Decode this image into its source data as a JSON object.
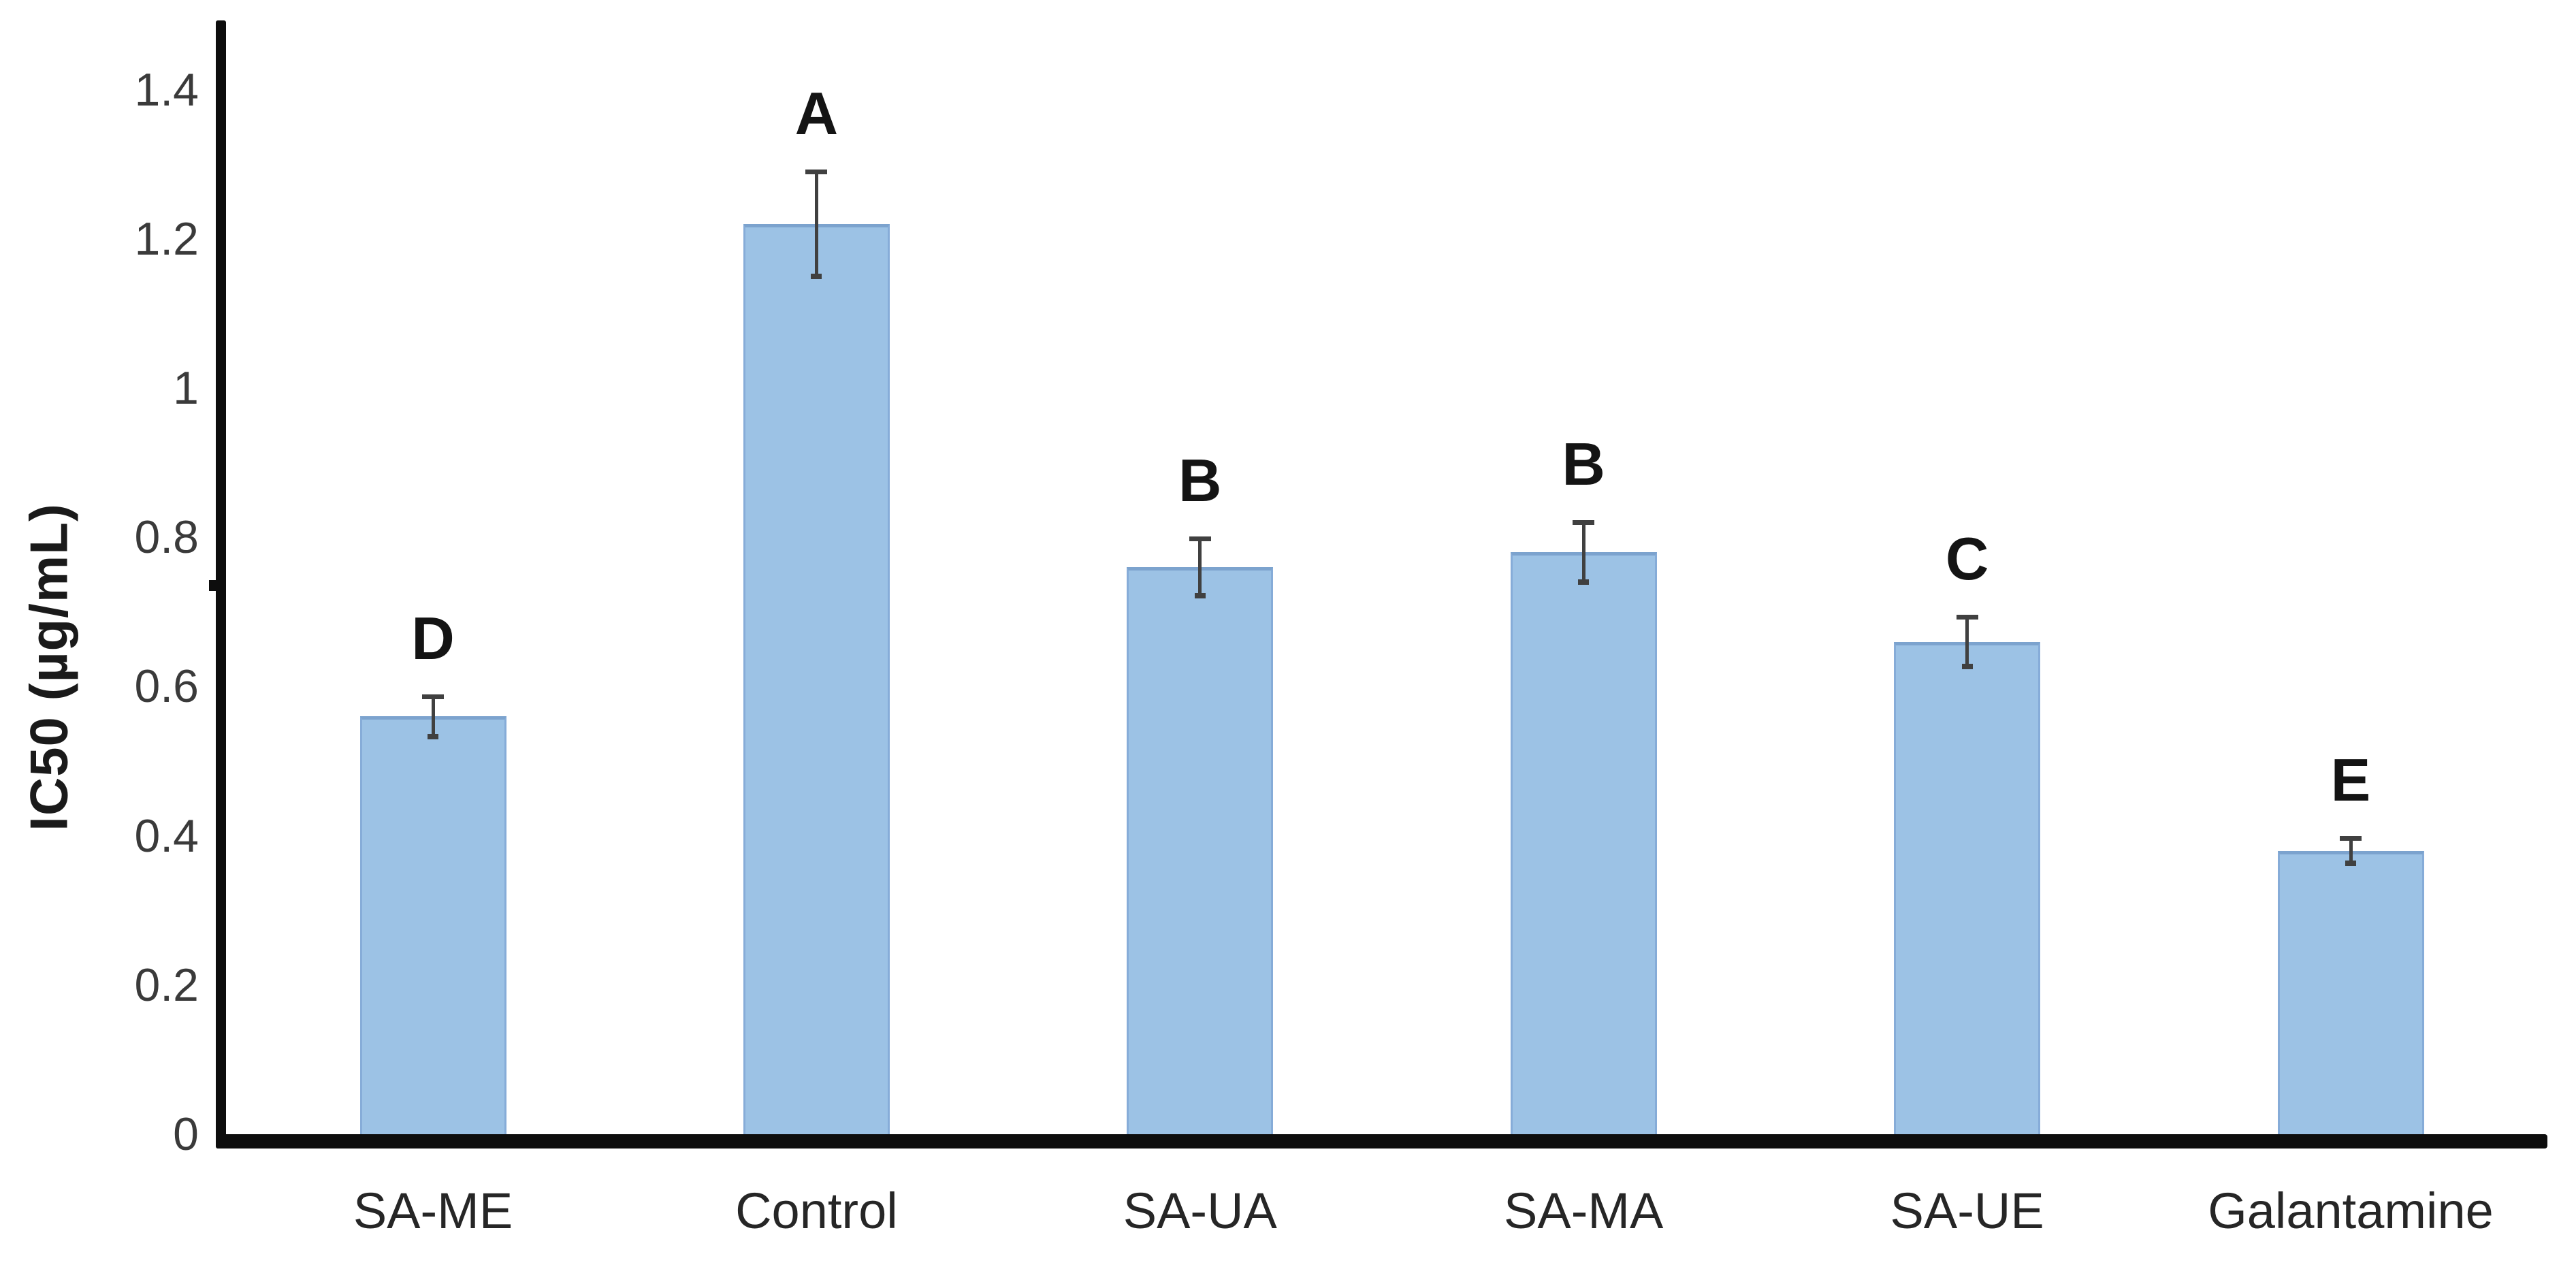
{
  "chart_data": {
    "type": "bar",
    "title": "",
    "ylabel": "IC50 (µg/mL)",
    "xlabel": "",
    "ylim": [
      0,
      1.4
    ],
    "y_ticks": [
      0,
      0.2,
      0.4,
      0.6,
      0.8,
      1,
      1.2,
      1.4
    ],
    "y_tick_labels": [
      "0",
      "0.2",
      "0.4",
      "0.6",
      "0.8",
      "1",
      "1.2",
      "1.4"
    ],
    "grid": false,
    "legend": "none",
    "categories": [
      "SA-ME",
      "Control",
      "SA-UA",
      "SA-MA",
      "SA-UE",
      "Galantamine"
    ],
    "values": [
      0.56,
      1.22,
      0.76,
      0.78,
      0.66,
      0.38
    ],
    "errors": [
      0.027,
      0.07,
      0.038,
      0.04,
      0.033,
      0.017
    ],
    "significance_letters": [
      "D",
      "A",
      "B",
      "B",
      "C",
      "E"
    ],
    "bar_color": "#9CC2E5",
    "bar_edge_color": "#86ACD8",
    "bar_top_edge_color": "#7CA3CE",
    "error_bar_color": "#404040",
    "axis_color": "#0d0d0d",
    "tick_label_color": "#3a3a3a",
    "category_label_color": "#262626",
    "letter_color": "#141414"
  }
}
